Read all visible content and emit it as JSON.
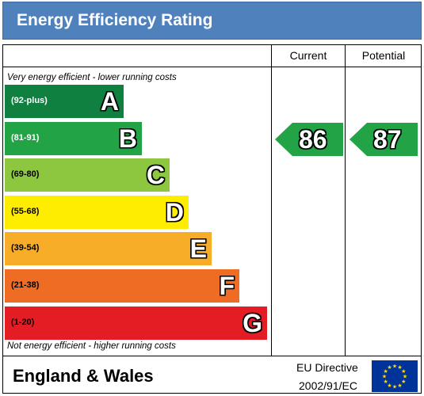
{
  "header": {
    "title": "Energy Efficiency Rating"
  },
  "columns": {
    "current": "Current",
    "potential": "Potential"
  },
  "notes": {
    "top": "Very energy efficient - lower running costs",
    "bottom": "Not energy efficient - higher running costs"
  },
  "bands": [
    {
      "range": "(92-plus)",
      "letter": "A",
      "color": "#0f8040",
      "range_text_color": "#ffffff"
    },
    {
      "range": "(81-91)",
      "letter": "B",
      "color": "#21a346",
      "range_text_color": "#ffffff"
    },
    {
      "range": "(69-80)",
      "letter": "C",
      "color": "#8dc63f",
      "range_text_color": "#000000"
    },
    {
      "range": "(55-68)",
      "letter": "D",
      "color": "#ffed00",
      "range_text_color": "#000000"
    },
    {
      "range": "(39-54)",
      "letter": "E",
      "color": "#f7ad27",
      "range_text_color": "#000000"
    },
    {
      "range": "(21-38)",
      "letter": "F",
      "color": "#ef6c25",
      "range_text_color": "#000000"
    },
    {
      "range": "(1-20)",
      "letter": "G",
      "color": "#e31d23",
      "range_text_color": "#000000"
    }
  ],
  "ratings": {
    "current": {
      "value": "86",
      "band": "B",
      "color": "#21a346"
    },
    "potential": {
      "value": "87",
      "band": "B",
      "color": "#21a346"
    }
  },
  "footer": {
    "region": "England & Wales",
    "directive_line1": "EU Directive",
    "directive_line2": "2002/91/EC"
  },
  "colors": {
    "header_bg": "#4f81bd",
    "eu_flag_bg": "#003399",
    "eu_star": "#ffdd00"
  },
  "icons": {
    "flag": "eu-flag-icon"
  }
}
